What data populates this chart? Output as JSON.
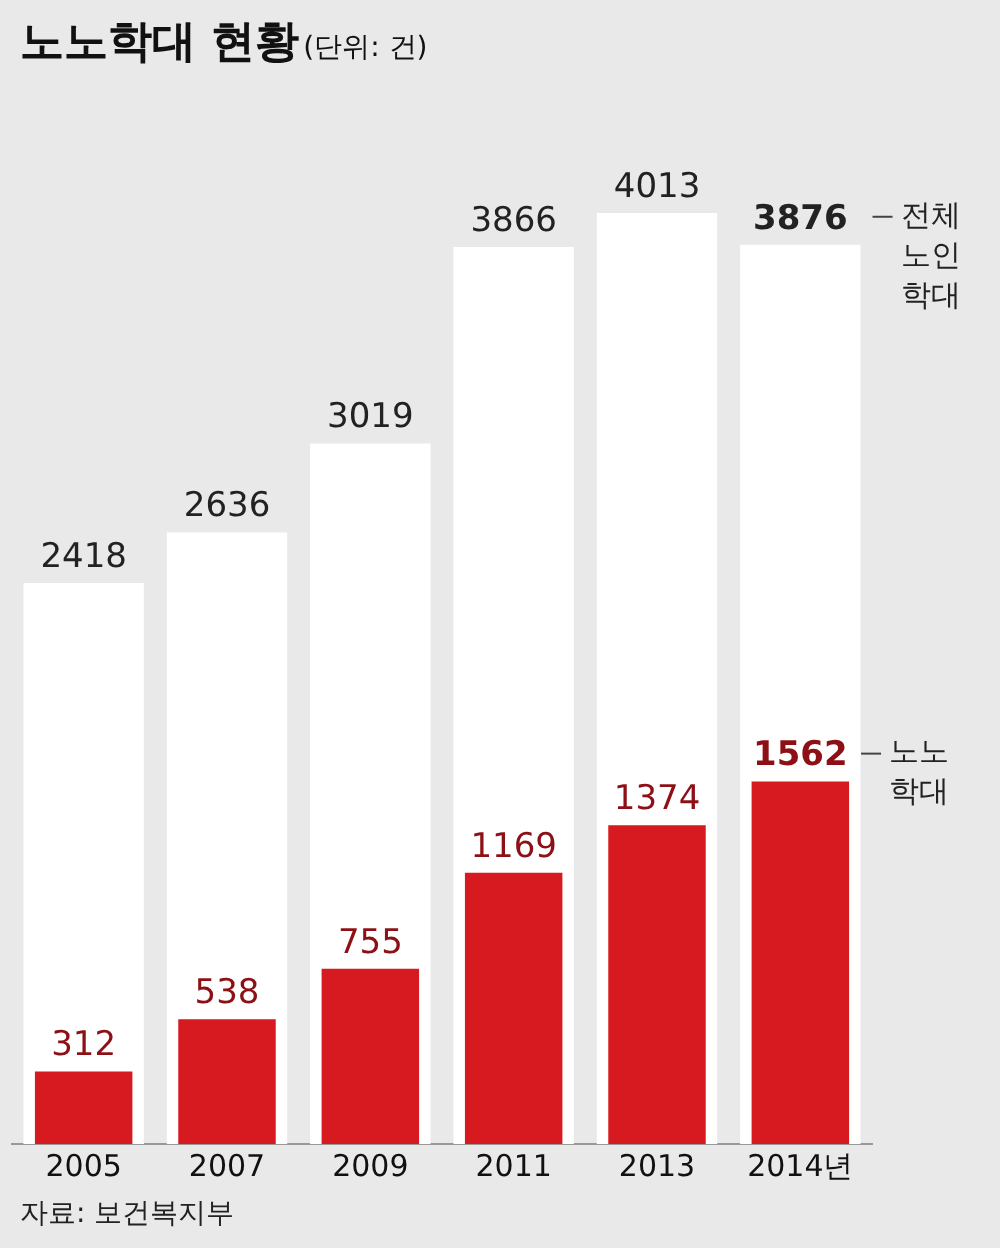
{
  "chart_data": {
    "type": "bar",
    "title": "노노학대 현황",
    "subtitle": "(단위: 건)",
    "categories": [
      "2005",
      "2007",
      "2009",
      "2011",
      "2013",
      "2014년"
    ],
    "series": [
      {
        "name": "전체 노인 학대",
        "color": "#ffffff",
        "values": [
          2418,
          2636,
          3019,
          3866,
          4013,
          3876
        ]
      },
      {
        "name": "노노 학대",
        "color": "#d71920",
        "values": [
          312,
          538,
          755,
          1169,
          1374,
          1562
        ]
      }
    ],
    "data_labels": true,
    "legend": false,
    "grid": false,
    "tick_labels": "x",
    "annotations": [
      "자료: 보건복지부"
    ]
  }
}
